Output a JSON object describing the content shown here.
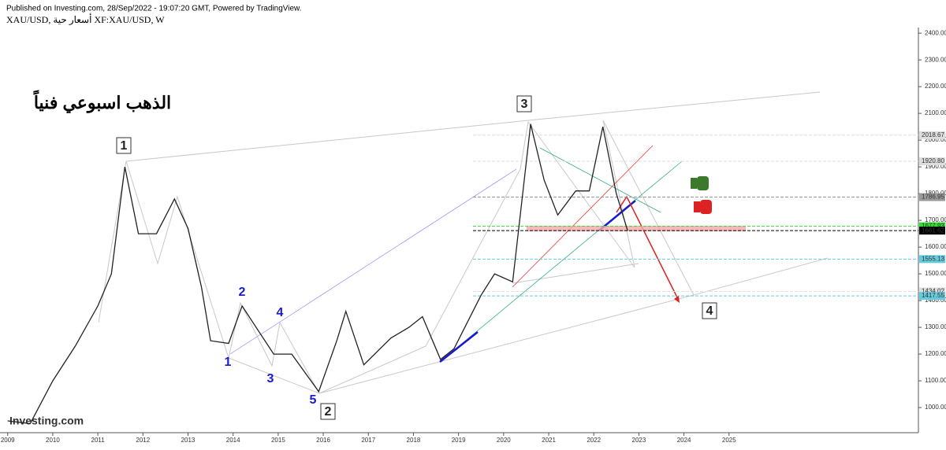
{
  "header": {
    "published": "Published on Investing.com, 28/Sep/2022 - 19:07:20 GMT, Powered by TradingView.",
    "symbol": "XAU/USD, أسعار حية XF:XAU/USD, W"
  },
  "chart_data": {
    "type": "line",
    "title": "الذهب اسبوعي فنياً",
    "x": [
      2009.0,
      2009.5,
      2010.0,
      2010.5,
      2011.0,
      2011.3,
      2011.6,
      2011.9,
      2012.3,
      2012.7,
      2013.0,
      2013.3,
      2013.5,
      2013.9,
      2014.2,
      2014.9,
      2015.3,
      2015.9,
      2016.3,
      2016.5,
      2016.9,
      2017.5,
      2017.9,
      2018.2,
      2018.6,
      2018.9,
      2019.5,
      2019.8,
      2020.2,
      2020.6,
      2020.9,
      2021.2,
      2021.6,
      2021.9,
      2022.2,
      2022.5,
      2022.75
    ],
    "series": [
      {
        "name": "XAU/USD",
        "color": "#222222",
        "values": [
          950,
          940,
          1100,
          1230,
          1380,
          1500,
          1900,
          1650,
          1650,
          1780,
          1670,
          1450,
          1250,
          1240,
          1380,
          1200,
          1200,
          1060,
          1250,
          1360,
          1160,
          1260,
          1300,
          1340,
          1180,
          1220,
          1420,
          1500,
          1470,
          2060,
          1850,
          1720,
          1810,
          1810,
          2050,
          1800,
          1661.62
        ]
      }
    ],
    "xlim": [
      2008.83,
      2029.2
    ],
    "ylim": [
      906,
      2524
    ],
    "xticks": [
      2009,
      2010,
      2011,
      2012,
      2013,
      2014,
      2015,
      2016,
      2017,
      2018,
      2019,
      2020,
      2021,
      2022,
      2023,
      2024,
      2025
    ],
    "yticks": [
      {
        "value": 1000,
        "label": "1000.00"
      },
      {
        "value": 1100,
        "label": "1100.00"
      },
      {
        "value": 1200,
        "label": "1200.00"
      },
      {
        "value": 1300,
        "label": "1300.00"
      },
      {
        "value": 1400,
        "label": "1400.00"
      },
      {
        "value": 1500,
        "label": "1500.00"
      },
      {
        "value": 1600,
        "label": "1600.00"
      },
      {
        "value": 1700,
        "label": "1700.00"
      },
      {
        "value": 1800,
        "label": "1800.00"
      },
      {
        "value": 1900,
        "label": "1900.00"
      },
      {
        "value": 2000,
        "label": "2000.00"
      },
      {
        "value": 2100,
        "label": "2100.00"
      },
      {
        "value": 2200,
        "label": "2200.00"
      },
      {
        "value": 2300,
        "label": "2300.00"
      },
      {
        "value": 2400,
        "label": "2400.00"
      }
    ],
    "levels": [
      {
        "value": 2018.67,
        "label": "2018.67",
        "color": "#dddddd",
        "text_color": "#333333"
      },
      {
        "value": 1920.8,
        "label": "1920.80",
        "color": "#dddddd",
        "text_color": "#333333"
      },
      {
        "value": 1786.95,
        "label": "1786.95",
        "color": "#999999",
        "text_color": "#333333"
      },
      {
        "value": 1677.93,
        "label": "1677.93",
        "color": "#33dd33",
        "text_color": "#000000"
      },
      {
        "value": 1661.62,
        "label": "1661.62",
        "color": "#000000",
        "text_color": "#ffffff"
      },
      {
        "value": 1555.13,
        "label": "1555.13",
        "color": "#66ccdd",
        "text_color": "#000000"
      },
      {
        "value": 1434.02,
        "label": "1434.02",
        "color": "#dddddd",
        "text_color": "#333333"
      },
      {
        "value": 1417.55,
        "label": "1417.55",
        "color": "#66ccdd",
        "text_color": "#000000"
      }
    ],
    "wave_labels": [
      "1",
      "2",
      "3",
      "4",
      "5"
    ],
    "boxed_labels": [
      "1",
      "2",
      "3",
      "4"
    ],
    "watermark": "Investing.com"
  }
}
